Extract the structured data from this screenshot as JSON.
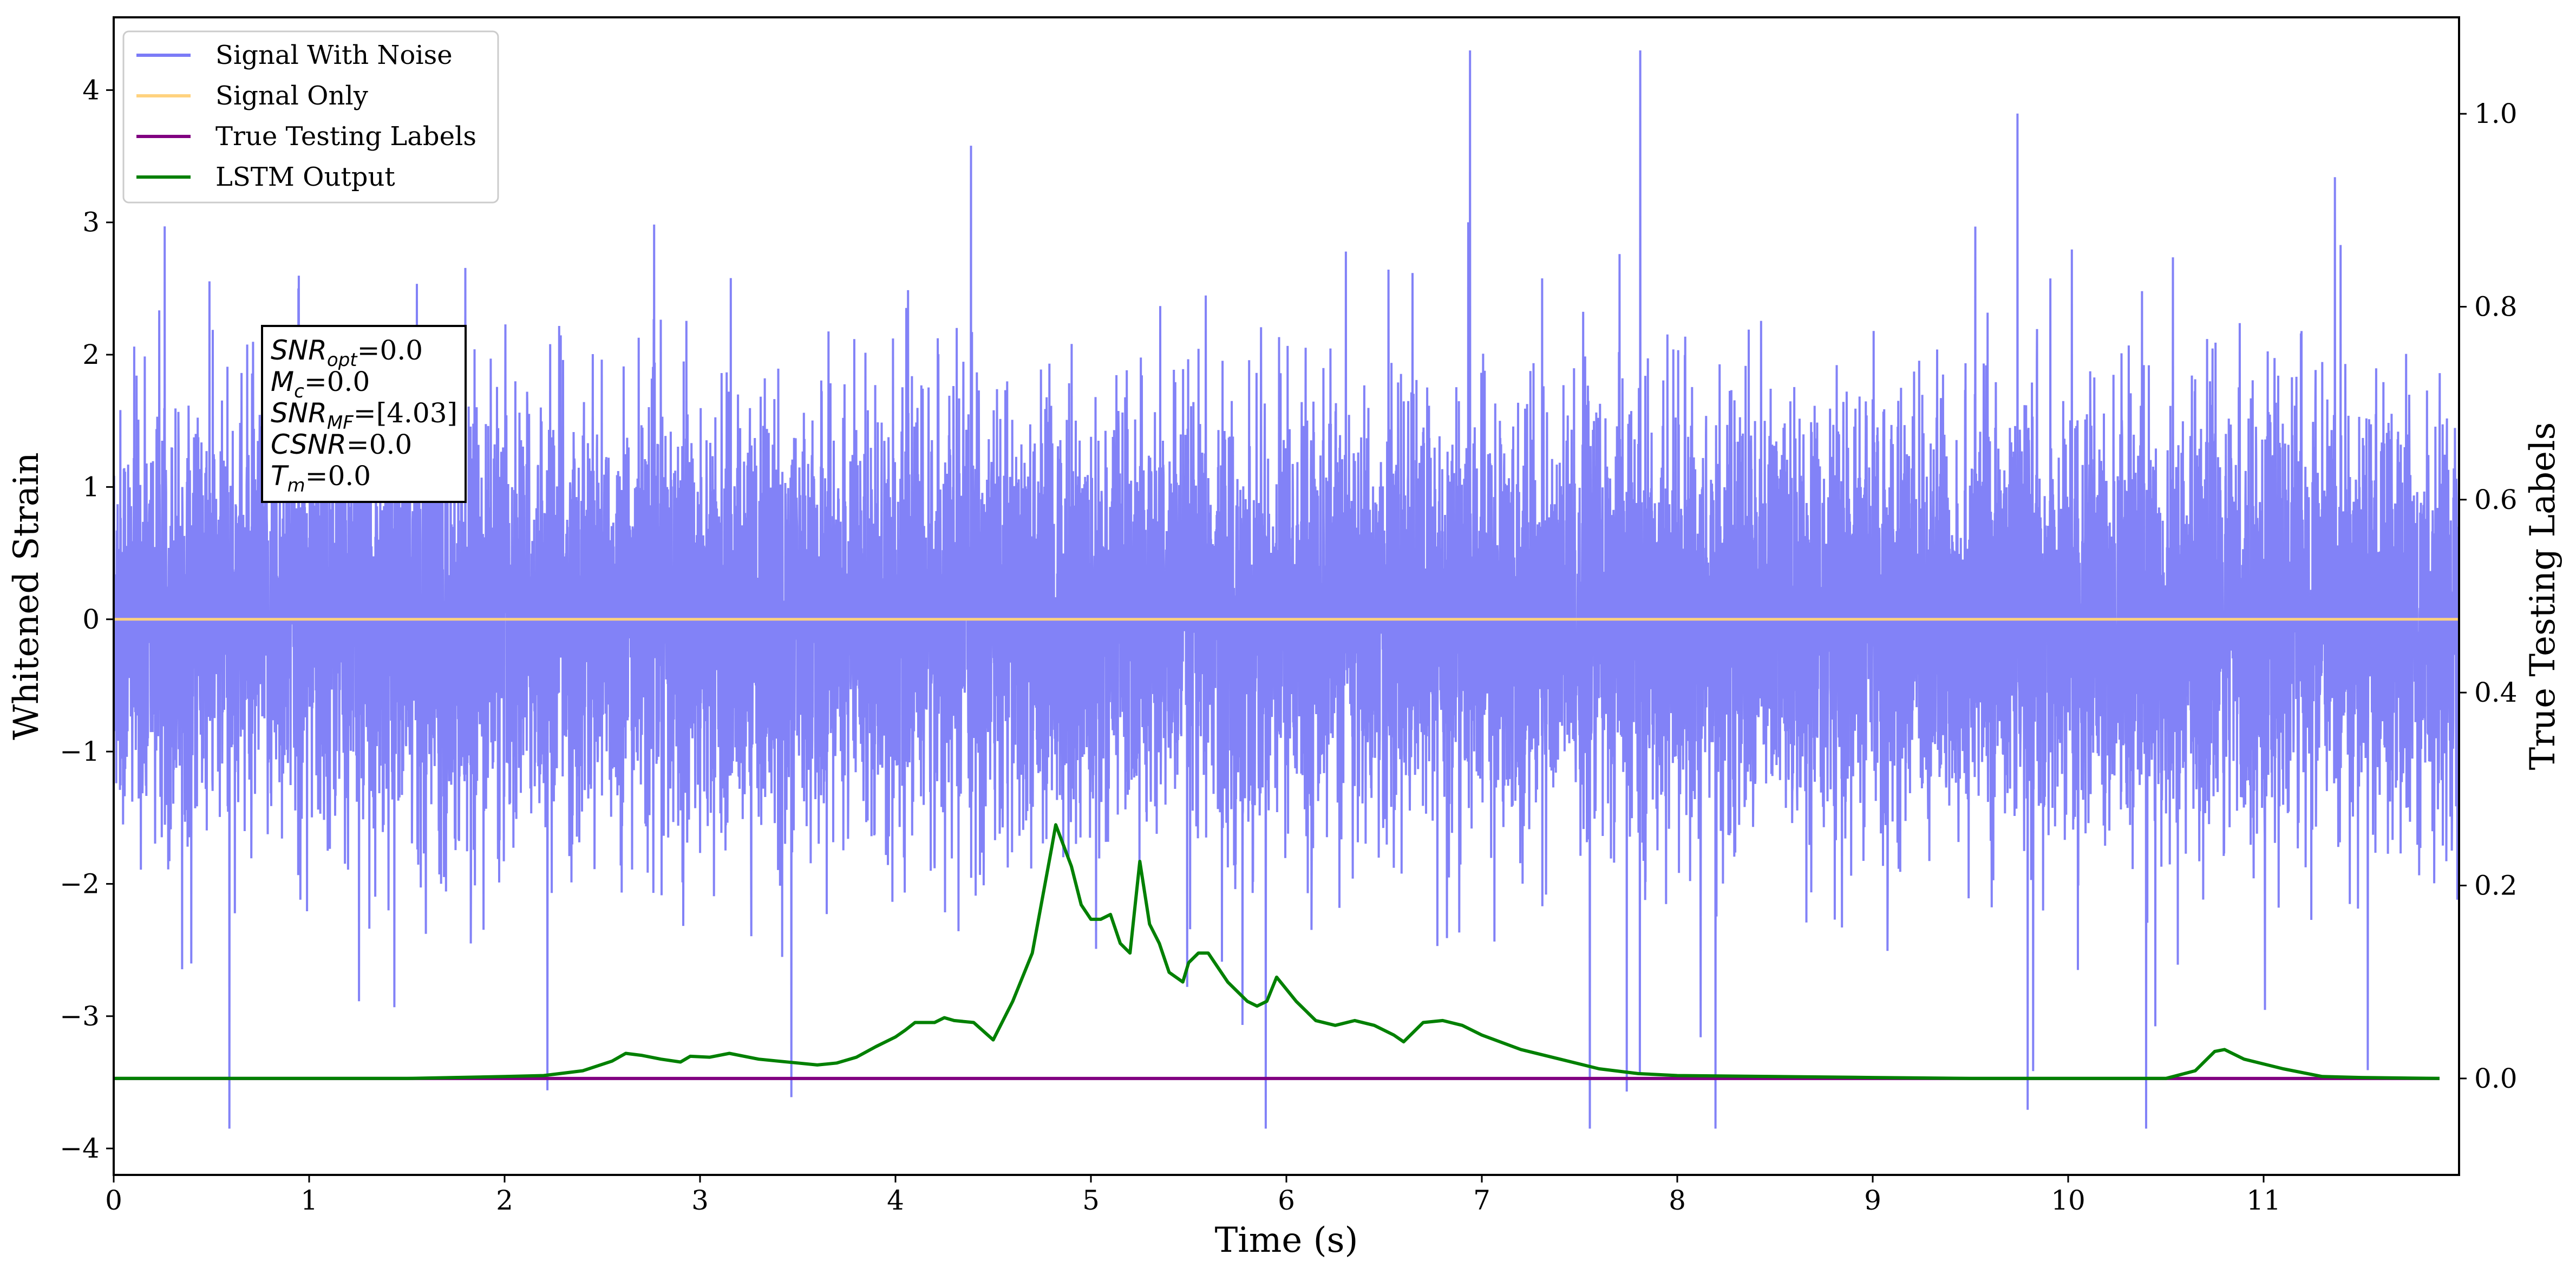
{
  "chart_data": {
    "type": "line",
    "xlabel": "Time (s)",
    "ylabel": "Whitened Strain",
    "y2label": "True Testing Labels",
    "xlim": [
      0,
      12
    ],
    "ylim": [
      -4.2,
      4.55
    ],
    "y2lim": [
      -0.1,
      1.1
    ],
    "x_ticks": [
      0,
      1,
      2,
      3,
      4,
      5,
      6,
      7,
      8,
      9,
      10,
      11
    ],
    "y_ticks": [
      -4,
      -3,
      -2,
      -1,
      0,
      1,
      2,
      3,
      4
    ],
    "y2_ticks": [
      0.0,
      0.2,
      0.4,
      0.6,
      0.8,
      1.0
    ],
    "grid": false,
    "legend": {
      "placement": "top-left",
      "entries": [
        {
          "name": "Signal With Noise",
          "color": "#7b7bf7"
        },
        {
          "name": "Signal Only",
          "color": "#ffd27f"
        },
        {
          "name": "True Testing Labels",
          "color": "#800080"
        },
        {
          "name": "LSTM Output",
          "color": "#008000"
        }
      ]
    },
    "series": [
      {
        "name": "Signal With Noise",
        "axis": "left",
        "color": "#7b7bf7",
        "style": "dense noise, values mostly within about ±1.5 with spikes between -3.8 and 4.3"
      },
      {
        "name": "Signal Only",
        "axis": "left",
        "color": "#ffd27f",
        "x": [
          0,
          12
        ],
        "y": [
          0,
          0
        ]
      },
      {
        "name": "True Testing Labels",
        "axis": "right",
        "color": "#800080",
        "x": [
          0,
          11.9
        ],
        "y": [
          0,
          0
        ]
      },
      {
        "name": "LSTM Output",
        "axis": "right",
        "color": "#008000",
        "x": [
          0,
          0.5,
          1.0,
          1.5,
          2.0,
          2.2,
          2.4,
          2.55,
          2.62,
          2.7,
          2.8,
          2.9,
          2.95,
          3.05,
          3.15,
          3.3,
          3.4,
          3.5,
          3.6,
          3.7,
          3.8,
          3.9,
          4.0,
          4.05,
          4.1,
          4.2,
          4.25,
          4.3,
          4.4,
          4.5,
          4.6,
          4.7,
          4.8,
          4.82,
          4.9,
          4.95,
          5.0,
          5.05,
          5.1,
          5.15,
          5.2,
          5.25,
          5.3,
          5.35,
          5.4,
          5.47,
          5.5,
          5.55,
          5.6,
          5.7,
          5.8,
          5.85,
          5.9,
          5.95,
          6.05,
          6.15,
          6.25,
          6.35,
          6.45,
          6.55,
          6.6,
          6.7,
          6.8,
          6.9,
          7.0,
          7.2,
          7.4,
          7.6,
          7.8,
          8.0,
          8.5,
          9.0,
          9.5,
          10.0,
          10.5,
          10.65,
          10.75,
          10.8,
          10.9,
          11.1,
          11.3,
          11.5,
          11.9
        ],
        "y": [
          0.0,
          0.0,
          0.0,
          0.0,
          0.002,
          0.003,
          0.008,
          0.018,
          0.026,
          0.024,
          0.02,
          0.017,
          0.023,
          0.022,
          0.026,
          0.02,
          0.018,
          0.016,
          0.014,
          0.016,
          0.022,
          0.033,
          0.043,
          0.05,
          0.058,
          0.058,
          0.063,
          0.06,
          0.058,
          0.04,
          0.08,
          0.13,
          0.24,
          0.263,
          0.22,
          0.18,
          0.165,
          0.165,
          0.17,
          0.14,
          0.13,
          0.225,
          0.16,
          0.14,
          0.11,
          0.1,
          0.12,
          0.13,
          0.13,
          0.1,
          0.08,
          0.075,
          0.08,
          0.105,
          0.08,
          0.06,
          0.055,
          0.06,
          0.055,
          0.045,
          0.038,
          0.058,
          0.06,
          0.055,
          0.045,
          0.03,
          0.02,
          0.01,
          0.005,
          0.003,
          0.002,
          0.001,
          0.0,
          0.0,
          0.0,
          0.008,
          0.028,
          0.03,
          0.02,
          0.01,
          0.002,
          0.001,
          0.0
        ]
      }
    ],
    "annotation": [
      {
        "symbol": "SNR",
        "sub": "opt",
        "value": "=0.0"
      },
      {
        "symbol": "M",
        "sub": "c",
        "value": "=0.0"
      },
      {
        "symbol": "SNR",
        "sub": "MF",
        "value": "=[4.03]"
      },
      {
        "symbol": "CSNR",
        "sub": "",
        "value": "=0.0"
      },
      {
        "symbol": "T",
        "sub": "m",
        "value": "=0.0"
      }
    ]
  }
}
